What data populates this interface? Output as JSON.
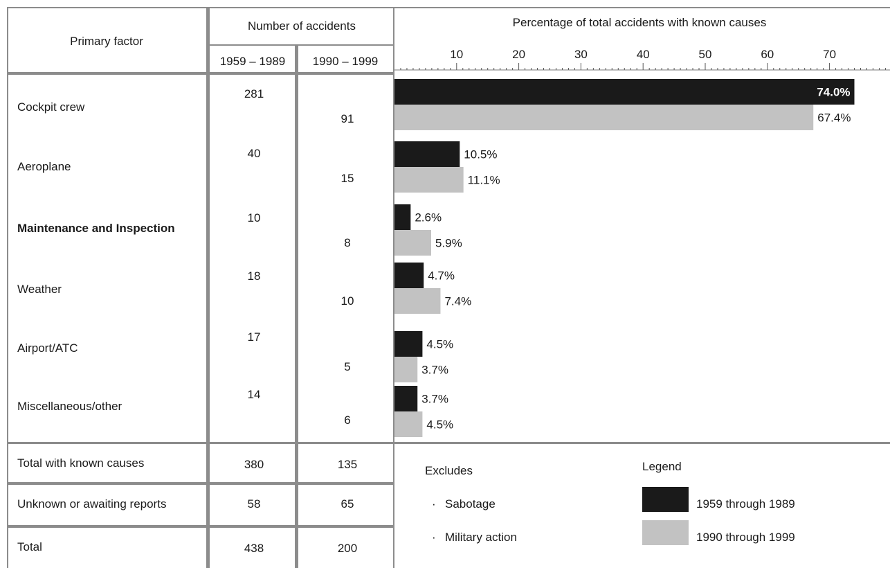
{
  "table": {
    "header": {
      "primary_factor": "Primary factor",
      "number_of_accidents": "Number of accidents",
      "period1": "1959 – 1989",
      "period2": "1990 – 1999",
      "percentage": "Percentage of total accidents with known causes"
    },
    "rows": [
      {
        "factor": "Cockpit crew",
        "count1": "281",
        "count2": "91"
      },
      {
        "factor": "Aeroplane",
        "count1": "40",
        "count2": "15"
      },
      {
        "factor": "Maintenance and Inspection",
        "count1": "10",
        "count2": "8"
      },
      {
        "factor": "Weather",
        "count1": "18",
        "count2": "10"
      },
      {
        "factor": "Airport/ATC",
        "count1": "17",
        "count2": "5"
      },
      {
        "factor": "Miscellaneous/other",
        "count1": "14",
        "count2": "6"
      }
    ],
    "totals": [
      {
        "label": "Total with known causes",
        "count1": "380",
        "count2": "135"
      },
      {
        "label": "Unknown or awaiting reports",
        "count1": "58",
        "count2": "65"
      },
      {
        "label": "Total",
        "count1": "438",
        "count2": "200"
      }
    ]
  },
  "excludes": {
    "title": "Excludes",
    "items": [
      "Sabotage",
      "Military action"
    ]
  },
  "legend": {
    "title": "Legend",
    "items": [
      {
        "label": "1959 through 1989",
        "color": "#1a1a1a"
      },
      {
        "label": "1990 through 1999",
        "color": "#c2c2c2"
      }
    ]
  },
  "chart_data": {
    "type": "bar",
    "orientation": "horizontal",
    "title": "Percentage of total accidents with known causes",
    "categories": [
      "Cockpit crew",
      "Aeroplane",
      "Maintenance and Inspection",
      "Weather",
      "Airport/ATC",
      "Miscellaneous/other"
    ],
    "series": [
      {
        "name": "1959 through 1989",
        "color": "#1a1a1a",
        "values": [
          74.0,
          10.5,
          2.6,
          4.7,
          4.5,
          3.7
        ],
        "labels": [
          "74.0%",
          "10.5%",
          "2.6%",
          "4.7%",
          "4.5%",
          "3.7%"
        ]
      },
      {
        "name": "1990 through 1999",
        "color": "#c2c2c2",
        "values": [
          67.4,
          11.1,
          5.9,
          7.4,
          3.7,
          4.5
        ],
        "labels": [
          "67.4%",
          "11.1%",
          "5.9%",
          "7.4%",
          "3.7%",
          "4.5%"
        ]
      }
    ],
    "xticks": [
      10,
      20,
      30,
      40,
      50,
      60,
      70
    ],
    "xlim": [
      0,
      79
    ],
    "axis_position": "top",
    "grid": false
  }
}
